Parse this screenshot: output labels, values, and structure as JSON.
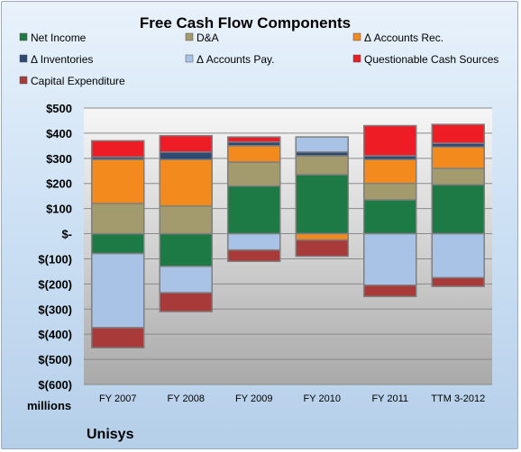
{
  "chart_data": {
    "type": "bar",
    "stacked": true,
    "title": "Free Cash Flow Components",
    "unit_label": "millions",
    "brand": "Unisys",
    "categories": [
      "FY 2007",
      "FY 2008",
      "FY 2009",
      "FY 2010",
      "FY 2011",
      "TTM 3-2012"
    ],
    "ylim": [
      -600,
      500
    ],
    "yticks": [
      500,
      400,
      300,
      200,
      100,
      0,
      -100,
      -200,
      -300,
      -400,
      -500,
      -600
    ],
    "ytick_labels": [
      "$500",
      "$400",
      "$300",
      "$200",
      "$100",
      "$-",
      "$(100)",
      "$(200)",
      "$(300)",
      "$(400)",
      "$(500)",
      "$(600)"
    ],
    "grid": true,
    "legend_position": "top",
    "series": [
      {
        "name": "Net Income",
        "color": "#1e7a45",
        "values": [
          -79,
          -130,
          190,
          235,
          135,
          195
        ]
      },
      {
        "name": "D&A",
        "color": "#a39a6e",
        "values": [
          120,
          110,
          95,
          75,
          65,
          65
        ]
      },
      {
        "name": "Δ Accounts Rec.",
        "color": "#f28a1e",
        "values": [
          175,
          185,
          65,
          -25,
          95,
          85
        ]
      },
      {
        "name": "Δ Inventories",
        "color": "#2e4a73",
        "values": [
          10,
          30,
          15,
          15,
          15,
          15
        ]
      },
      {
        "name": "Δ Accounts Pay.",
        "color": "#a8c3e6",
        "values": [
          -295,
          -105,
          -65,
          60,
          -205,
          -175
        ]
      },
      {
        "name": "Questionable Cash Sources",
        "color": "#ee1c24",
        "values": [
          65,
          65,
          20,
          0,
          120,
          75
        ]
      },
      {
        "name": "Capital Expenditure",
        "color": "#a83a3a",
        "values": [
          -80,
          -75,
          -45,
          -65,
          -45,
          -35
        ]
      }
    ]
  }
}
